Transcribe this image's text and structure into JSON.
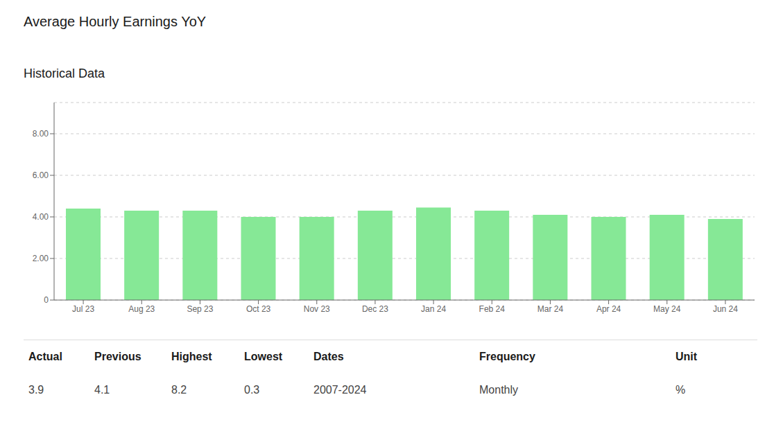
{
  "chart_data": {
    "type": "bar",
    "title": "Average Hourly Earnings YoY",
    "subtitle": "Historical Data",
    "categories": [
      "Jul 23",
      "Aug 23",
      "Sep 23",
      "Oct 23",
      "Nov 23",
      "Dec 23",
      "Jan 24",
      "Feb 24",
      "Mar 24",
      "Apr 24",
      "May 24",
      "Jun 24"
    ],
    "values": [
      4.4,
      4.3,
      4.3,
      4.0,
      4.0,
      4.3,
      4.45,
      4.3,
      4.1,
      4.0,
      4.1,
      3.9
    ],
    "color": "#86e896",
    "ylim": [
      0,
      9.5
    ],
    "yticks": [
      0,
      {
        "value": 2,
        "label": "2.00"
      },
      {
        "value": 4,
        "label": "4.00"
      },
      {
        "value": 6,
        "label": "6.00"
      },
      {
        "value": 8,
        "label": "8.00"
      }
    ],
    "grid": true,
    "annotations": [
      {
        "label": "Actual",
        "text": "3.9"
      },
      {
        "label": "Previous",
        "text": "4.1"
      },
      {
        "label": "Highest",
        "text": "8.2"
      },
      {
        "label": "Lowest",
        "text": "0.3"
      },
      {
        "label": "Dates",
        "text": "2007-2024"
      },
      {
        "label": "Frequency",
        "text": "Monthly"
      },
      {
        "label": "Unit",
        "text": "%"
      }
    ]
  }
}
